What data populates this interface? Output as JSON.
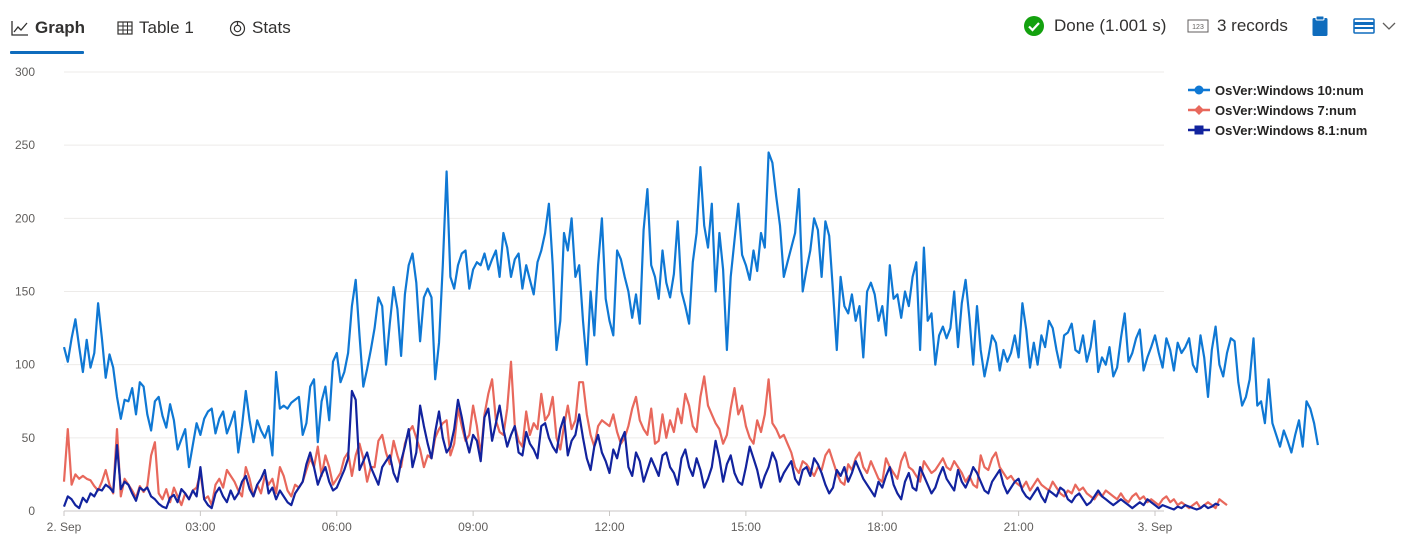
{
  "tabs": [
    {
      "label": "Graph",
      "active": true
    },
    {
      "label": "Table 1",
      "active": false
    },
    {
      "label": "Stats",
      "active": false
    }
  ],
  "status": {
    "text": "Done (1.001 s)",
    "color": "#13a10e"
  },
  "records": {
    "badge": "123",
    "text": "3 records"
  },
  "colors": {
    "accent": "#0f6cbd"
  },
  "chart_data": {
    "type": "line",
    "title": "",
    "xlabel": "",
    "ylabel": "",
    "ylim": [
      0,
      300
    ],
    "yticks": [
      0,
      50,
      100,
      150,
      200,
      250,
      300
    ],
    "xlim": [
      0,
      1440
    ],
    "xticks": [
      {
        "pos": 0,
        "label": "2. Sep"
      },
      {
        "pos": 180,
        "label": "03:00"
      },
      {
        "pos": 360,
        "label": "06:00"
      },
      {
        "pos": 540,
        "label": "09:00"
      },
      {
        "pos": 720,
        "label": "12:00"
      },
      {
        "pos": 900,
        "label": "15:00"
      },
      {
        "pos": 1080,
        "label": "18:00"
      },
      {
        "pos": 1260,
        "label": "21:00"
      },
      {
        "pos": 1440,
        "label": "3. Sep"
      }
    ],
    "x_step_minutes": 5,
    "legend_position": "top-right",
    "series": [
      {
        "name": "OsVer:Windows 10:num",
        "color": "#0f78d4",
        "marker": "circle",
        "values": [
          112,
          102,
          118,
          131,
          112,
          95,
          117,
          98,
          108,
          142,
          118,
          91,
          107,
          98,
          78,
          63,
          76,
          75,
          84,
          66,
          88,
          85,
          66,
          55,
          75,
          78,
          65,
          57,
          73,
          62,
          42,
          49,
          56,
          30,
          45,
          60,
          52,
          63,
          68,
          70,
          53,
          63,
          68,
          53,
          60,
          68,
          40,
          58,
          82,
          62,
          47,
          62,
          55,
          50,
          58,
          38,
          95,
          70,
          72,
          70,
          74,
          76,
          78,
          52,
          60,
          85,
          90,
          47,
          75,
          85,
          62,
          102,
          108,
          88,
          95,
          108,
          140,
          158,
          120,
          85,
          97,
          110,
          125,
          146,
          140,
          100,
          128,
          153,
          138,
          106,
          148,
          168,
          176,
          156,
          116,
          146,
          152,
          146,
          90,
          115,
          168,
          232,
          160,
          152,
          168,
          176,
          178,
          152,
          165,
          170,
          168,
          176,
          165,
          172,
          178,
          160,
          190,
          180,
          160,
          172,
          176,
          152,
          168,
          158,
          148,
          170,
          178,
          190,
          210,
          168,
          110,
          130,
          190,
          178,
          200,
          160,
          168,
          130,
          100,
          150,
          120,
          168,
          200,
          145,
          130,
          120,
          178,
          172,
          160,
          150,
          132,
          148,
          128,
          192,
          220,
          168,
          160,
          145,
          178,
          156,
          146,
          162,
          198,
          150,
          140,
          128,
          170,
          190,
          235,
          195,
          180,
          210,
          150,
          190,
          165,
          110,
          160,
          185,
          210,
          175,
          168,
          158,
          178,
          164,
          190,
          180,
          245,
          238,
          215,
          195,
          160,
          170,
          180,
          190,
          220,
          150,
          165,
          178,
          200,
          192,
          160,
          198,
          188,
          150,
          110,
          160,
          140,
          135,
          148,
          130,
          140,
          105,
          150,
          156,
          148,
          130,
          140,
          120,
          168,
          145,
          148,
          132,
          150,
          140,
          160,
          170,
          110,
          180,
          130,
          135,
          100,
          120,
          126,
          118,
          125,
          150,
          112,
          142,
          158,
          132,
          100,
          140,
          110,
          92,
          105,
          120,
          115,
          96,
          110,
          102,
          108,
          120,
          105,
          142,
          124,
          98,
          115,
          100,
          120,
          112,
          130,
          125,
          110,
          98,
          120,
          122,
          128,
          110,
          108,
          120,
          102,
          112,
          130,
          95,
          105,
          100,
          112,
          92,
          98,
          118,
          135,
          102,
          108,
          118,
          124,
          96,
          105,
          112,
          120,
          108,
          98,
          118,
          110,
          96,
          115,
          108,
          112,
          118,
          100,
          95,
          120,
          105,
          78,
          110,
          126,
          100,
          92,
          108,
          118,
          116,
          88,
          72,
          78,
          90,
          118,
          72,
          75,
          60,
          90,
          60,
          52,
          44,
          55,
          48,
          40,
          52,
          62,
          44,
          75,
          70,
          60,
          45
        ]
      },
      {
        "name": "OsVer:Windows 7:num",
        "color": "#e8685c",
        "marker": "diamond",
        "values": [
          20,
          56,
          18,
          25,
          22,
          24,
          22,
          21,
          17,
          14,
          20,
          28,
          18,
          12,
          56,
          10,
          22,
          18,
          14,
          9,
          17,
          13,
          17,
          38,
          47,
          12,
          8,
          15,
          6,
          16,
          10,
          4,
          12,
          8,
          14,
          16,
          26,
          8,
          10,
          4,
          18,
          22,
          16,
          28,
          24,
          20,
          14,
          10,
          30,
          22,
          10,
          18,
          12,
          24,
          18,
          22,
          12,
          30,
          24,
          14,
          10,
          18,
          16,
          20,
          28,
          36,
          30,
          44,
          24,
          38,
          30,
          18,
          22,
          26,
          36,
          40,
          24,
          38,
          46,
          36,
          20,
          30,
          30,
          48,
          52,
          40,
          32,
          48,
          38,
          30,
          46,
          54,
          58,
          50,
          42,
          30,
          38,
          36,
          50,
          56,
          60,
          62,
          38,
          46,
          70,
          58,
          48,
          52,
          72,
          58,
          38,
          66,
          80,
          90,
          62,
          54,
          52,
          70,
          102,
          58,
          48,
          44,
          68,
          52,
          60,
          56,
          80,
          62,
          66,
          78,
          50,
          42,
          58,
          72,
          56,
          62,
          88,
          88,
          66,
          52,
          44,
          58,
          62,
          60,
          58,
          66,
          54,
          46,
          50,
          58,
          70,
          78,
          62,
          56,
          52,
          70,
          46,
          48,
          66,
          50,
          62,
          54,
          70,
          60,
          80,
          72,
          58,
          54,
          78,
          92,
          72,
          66,
          60,
          56,
          46,
          52,
          70,
          84,
          66,
          72,
          58,
          50,
          46,
          62,
          54,
          66,
          90,
          60,
          56,
          50,
          52,
          46,
          40,
          30,
          26,
          34,
          32,
          28,
          24,
          30,
          28,
          38,
          42,
          34,
          26,
          20,
          18,
          32,
          28,
          36,
          40,
          30,
          26,
          34,
          28,
          22,
          20,
          36,
          30,
          26,
          22,
          34,
          40,
          30,
          28,
          24,
          20,
          34,
          30,
          26,
          28,
          32,
          36,
          30,
          28,
          34,
          30,
          26,
          20,
          24,
          18,
          16,
          38,
          30,
          28,
          36,
          40,
          30,
          26,
          22,
          24,
          20,
          18,
          16,
          20,
          14,
          18,
          22,
          18,
          16,
          14,
          20,
          16,
          12,
          10,
          14,
          12,
          18,
          14,
          16,
          12,
          10,
          8,
          12,
          10,
          14,
          12,
          10,
          8,
          12,
          8,
          6,
          10,
          12,
          8,
          10,
          6,
          8,
          6,
          4,
          8,
          10,
          6,
          8,
          4,
          6,
          4,
          2,
          4,
          6,
          2,
          4,
          6,
          4,
          2,
          8,
          6,
          4
        ]
      },
      {
        "name": "OsVer:Windows 8.1:num",
        "color": "#12239e",
        "marker": "square",
        "values": [
          3,
          10,
          8,
          4,
          2,
          9,
          6,
          12,
          10,
          15,
          14,
          18,
          16,
          13,
          45,
          15,
          20,
          18,
          12,
          7,
          16,
          14,
          16,
          10,
          8,
          5,
          3,
          2,
          9,
          11,
          6,
          15,
          12,
          8,
          14,
          10,
          30,
          8,
          4,
          2,
          12,
          16,
          10,
          6,
          14,
          8,
          12,
          20,
          24,
          15,
          10,
          18,
          22,
          28,
          12,
          16,
          8,
          14,
          10,
          6,
          4,
          12,
          16,
          20,
          32,
          40,
          30,
          18,
          25,
          30,
          20,
          14,
          16,
          22,
          28,
          36,
          82,
          76,
          28,
          34,
          40,
          30,
          24,
          18,
          30,
          34,
          38,
          26,
          20,
          34,
          44,
          56,
          30,
          40,
          72,
          58,
          46,
          36,
          54,
          68,
          50,
          40,
          44,
          56,
          76,
          64,
          50,
          40,
          52,
          48,
          34,
          64,
          70,
          48,
          60,
          72,
          56,
          44,
          52,
          58,
          40,
          38,
          54,
          46,
          42,
          36,
          58,
          60,
          50,
          44,
          40,
          56,
          64,
          38,
          48,
          52,
          66,
          50,
          36,
          28,
          44,
          52,
          40,
          34,
          26,
          42,
          36,
          48,
          54,
          30,
          24,
          40,
          34,
          20,
          28,
          36,
          30,
          24,
          38,
          40,
          30,
          26,
          18,
          36,
          42,
          30,
          24,
          36,
          28,
          16,
          22,
          30,
          48,
          36,
          20,
          32,
          38,
          26,
          20,
          18,
          30,
          44,
          36,
          28,
          16,
          24,
          30,
          40,
          34,
          20,
          26,
          30,
          34,
          22,
          18,
          28,
          30,
          24,
          36,
          32,
          26,
          18,
          12,
          16,
          28,
          24,
          30,
          20,
          26,
          34,
          28,
          22,
          18,
          14,
          10,
          20,
          16,
          24,
          30,
          18,
          12,
          8,
          20,
          26,
          16,
          14,
          30,
          24,
          18,
          12,
          16,
          24,
          30,
          22,
          18,
          14,
          28,
          20,
          16,
          22,
          30,
          26,
          20,
          14,
          12,
          20,
          24,
          28,
          18,
          12,
          16,
          20,
          22,
          14,
          10,
          8,
          12,
          16,
          10,
          6,
          14,
          12,
          10,
          16,
          14,
          8,
          6,
          10,
          12,
          8,
          4,
          6,
          10,
          14,
          10,
          8,
          6,
          4,
          6,
          8,
          6,
          4,
          2,
          4,
          6,
          4,
          8,
          6,
          4,
          2,
          4,
          3,
          2,
          1,
          3,
          2,
          4,
          3,
          2,
          1,
          2,
          4,
          2,
          3,
          5,
          4
        ]
      }
    ]
  }
}
